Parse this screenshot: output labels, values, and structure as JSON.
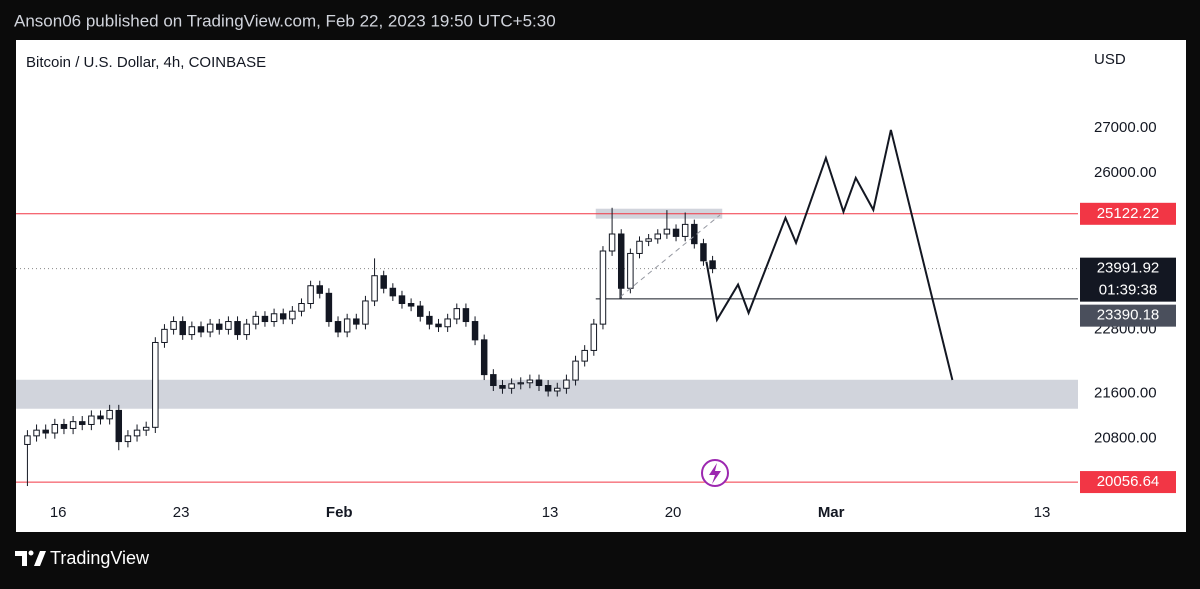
{
  "header": {
    "text": "Anson06 published on TradingView.com, Feb 22, 2023 19:50 UTC+5:30"
  },
  "chart_data": {
    "type": "candlestick",
    "title": "Bitcoin / U.S. Dollar, 4h, COINBASE",
    "currency": "USD",
    "log_scale": true,
    "grid": false,
    "color_up": "#ffffff",
    "color_down": "#131722",
    "xlim": [
      13.6,
      74.05
    ],
    "xticks": [
      {
        "value": 16,
        "label": "16"
      },
      {
        "value": 23,
        "label": "23"
      },
      {
        "value": 32,
        "label": "Feb"
      },
      {
        "value": 44,
        "label": "13"
      },
      {
        "value": 51,
        "label": "20"
      },
      {
        "value": 60,
        "label": "Mar"
      },
      {
        "value": 72,
        "label": "13"
      }
    ],
    "ylim": [
      19840,
      29020
    ],
    "yticks": [
      {
        "value": 20800,
        "label": "20800.00"
      },
      {
        "value": 21600,
        "label": "21600.00"
      },
      {
        "value": 22800,
        "label": "22800.00"
      },
      {
        "value": 26000,
        "label": "26000.00"
      },
      {
        "value": 27000,
        "label": "27000.00"
      }
    ],
    "x": [
      14.25,
      14.77,
      15.29,
      15.81,
      16.33,
      16.85,
      17.37,
      17.89,
      18.41,
      18.93,
      19.45,
      19.97,
      20.49,
      21.01,
      21.53,
      22.05,
      22.57,
      23.09,
      23.61,
      24.13,
      24.65,
      25.17,
      25.69,
      26.21,
      26.73,
      27.25,
      27.77,
      28.29,
      28.81,
      29.33,
      29.85,
      30.37,
      30.89,
      31.41,
      31.93,
      32.45,
      32.97,
      33.49,
      34.01,
      34.53,
      35.05,
      35.57,
      36.09,
      36.61,
      37.13,
      37.65,
      38.17,
      38.69,
      39.21,
      39.73,
      40.25,
      40.77,
      41.29,
      41.81,
      42.33,
      42.85,
      43.37,
      43.89,
      44.41,
      44.93,
      45.45,
      45.97,
      46.49,
      47.01,
      47.53,
      48.05,
      48.57,
      49.09,
      49.61,
      50.13,
      50.65,
      51.17,
      51.69,
      52.21,
      52.73,
      53.25
    ],
    "open": [
      20700,
      20850,
      20950,
      20900,
      21050,
      20980,
      21100,
      21050,
      21200,
      21150,
      21300,
      20750,
      20850,
      20950,
      21000,
      22550,
      22800,
      22950,
      22700,
      22850,
      22750,
      22900,
      22800,
      22950,
      22700,
      22900,
      23050,
      22950,
      23100,
      23000,
      23150,
      23300,
      23650,
      23500,
      22950,
      22750,
      23000,
      22900,
      23350,
      23850,
      23600,
      23450,
      23300,
      23250,
      23050,
      22900,
      22850,
      23000,
      23200,
      22950,
      22600,
      21950,
      21750,
      21700,
      21780,
      21800,
      21850,
      21750,
      21650,
      21700,
      21850,
      22200,
      22400,
      22900,
      24350,
      24700,
      23600,
      24300,
      24550,
      24600,
      24700,
      24800,
      24650,
      24900,
      24500,
      24150
    ],
    "high": [
      20950,
      21050,
      21050,
      21150,
      21150,
      21200,
      21200,
      21300,
      21300,
      21400,
      21400,
      20950,
      21050,
      21100,
      22650,
      22900,
      23050,
      23050,
      22950,
      22950,
      23000,
      23000,
      23050,
      23050,
      23000,
      23150,
      23150,
      23200,
      23200,
      23250,
      23400,
      23750,
      23750,
      23600,
      23050,
      23100,
      23100,
      23450,
      24200,
      23950,
      23700,
      23550,
      23400,
      23350,
      23150,
      23000,
      23100,
      23300,
      23300,
      23050,
      22700,
      22050,
      21850,
      21880,
      21900,
      21950,
      21950,
      21850,
      21800,
      21950,
      22300,
      22500,
      23000,
      24450,
      25250,
      24800,
      24400,
      24650,
      24700,
      24800,
      25200,
      24900,
      25150,
      25000,
      24600,
      24250
    ],
    "low": [
      19990,
      20750,
      20800,
      20800,
      20880,
      20880,
      20950,
      20950,
      21050,
      21050,
      20600,
      20650,
      20750,
      20850,
      20900,
      22450,
      22700,
      22600,
      22600,
      22650,
      22650,
      22700,
      22700,
      22600,
      22600,
      22800,
      22850,
      22850,
      22900,
      22900,
      23050,
      23200,
      23400,
      22850,
      22650,
      22650,
      22800,
      22800,
      23250,
      23500,
      23350,
      23200,
      23150,
      22950,
      22800,
      22750,
      22750,
      22900,
      22850,
      22500,
      21850,
      21650,
      21600,
      21600,
      21680,
      21700,
      21650,
      21550,
      21550,
      21600,
      21750,
      22100,
      22300,
      22800,
      24250,
      23400,
      23500,
      24200,
      24450,
      24500,
      24600,
      24550,
      24550,
      24400,
      24050,
      23900
    ],
    "close": [
      20850,
      20950,
      20900,
      21050,
      20980,
      21100,
      21050,
      21200,
      21150,
      21300,
      20750,
      20850,
      20950,
      21000,
      22550,
      22800,
      22950,
      22700,
      22850,
      22750,
      22900,
      22800,
      22950,
      22700,
      22900,
      23050,
      22950,
      23100,
      23000,
      23150,
      23300,
      23650,
      23500,
      22950,
      22750,
      23000,
      22900,
      23350,
      23850,
      23600,
      23450,
      23300,
      23250,
      23050,
      22900,
      22850,
      23000,
      23200,
      22950,
      22600,
      21950,
      21750,
      21700,
      21780,
      21800,
      21850,
      21750,
      21650,
      21700,
      21850,
      22200,
      22400,
      22900,
      24350,
      24700,
      23600,
      24300,
      24550,
      24600,
      24700,
      24800,
      24650,
      24900,
      24500,
      24150,
      23991.92
    ],
    "levels": [
      {
        "value": 25122.22,
        "color": "#f23645",
        "style": "solid",
        "label_color": "#f23645"
      },
      {
        "value": 23991.92,
        "color": "#888888",
        "style": "dotted",
        "label_color": "#131722",
        "countdown": "01:39:38"
      },
      {
        "value": 23390.18,
        "color": "#131722",
        "style": "solid",
        "label_color": "#4a4f5c",
        "from_x": 46.6
      },
      {
        "value": 20056.64,
        "color": "#f23645",
        "style": "solid",
        "label_color": "#f23645"
      }
    ],
    "zones": [
      {
        "values": [
          21330,
          21855
        ],
        "color": "#d1d4dc"
      },
      {
        "values": [
          25020,
          25230
        ],
        "x": [
          46.6,
          53.8
        ],
        "color": "#d1d4dc"
      }
    ],
    "projection": {
      "color": "#131722",
      "x": [
        52.9,
        53.5,
        54.7,
        55.3,
        57.4,
        58.0,
        59.7,
        60.7,
        61.4,
        62.4,
        63.4,
        66.9
      ],
      "values": [
        24130,
        22984,
        23673,
        23117,
        25037,
        24518,
        26328,
        25164,
        25890,
        25205,
        26955,
        21851
      ]
    }
  },
  "footer": {
    "brand": "TradingView"
  }
}
